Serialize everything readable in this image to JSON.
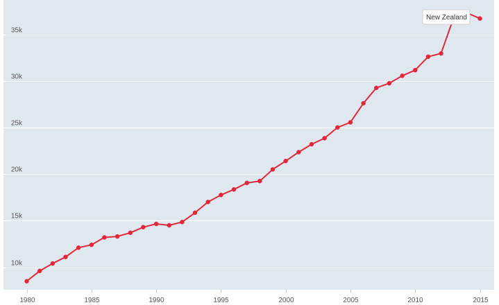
{
  "chart_data": {
    "type": "line",
    "title": "",
    "xlabel": "",
    "ylabel": "",
    "x": [
      1980,
      1981,
      1982,
      1983,
      1984,
      1985,
      1986,
      1987,
      1988,
      1989,
      1990,
      1991,
      1992,
      1993,
      1994,
      1995,
      1996,
      1997,
      1998,
      1999,
      2000,
      2001,
      2002,
      2003,
      2004,
      2005,
      2006,
      2007,
      2008,
      2009,
      2010,
      2011,
      2012,
      2013,
      2014,
      2015
    ],
    "series": [
      {
        "name": "New Zealand",
        "color": "#e0283a",
        "values": [
          8500,
          9600,
          10400,
          11100,
          12100,
          12400,
          13200,
          13300,
          13700,
          14300,
          14650,
          14500,
          14850,
          15850,
          17000,
          17750,
          18350,
          19050,
          19250,
          20500,
          21400,
          22350,
          23200,
          23850,
          25000,
          25550,
          27600,
          29250,
          29750,
          30550,
          31150,
          32600,
          32950,
          36900,
          37300,
          36700
        ]
      }
    ],
    "xlim": [
      1980,
      2015
    ],
    "ylim": [
      7500,
      38500
    ],
    "x_ticks": [
      1980,
      1985,
      1990,
      1995,
      2000,
      2005,
      2010,
      2015
    ],
    "x_tick_labels": [
      "1980",
      "1985",
      "1990",
      "1995",
      "2000",
      "2005",
      "2010",
      "2015"
    ],
    "y_ticks": [
      10000,
      15000,
      20000,
      25000,
      30000,
      35000
    ],
    "y_tick_labels": [
      "10k",
      "15k",
      "20k",
      "25k",
      "30k",
      "35k"
    ],
    "grid": true,
    "legend": "top-right",
    "background_color": "#e0e8ef",
    "grid_color": "#ffffff"
  }
}
